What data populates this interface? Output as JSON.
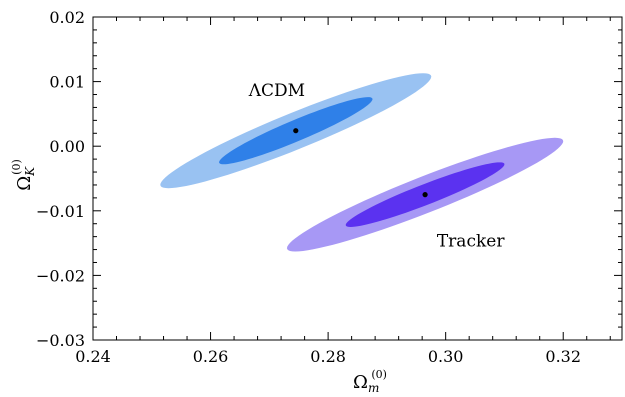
{
  "chart_data": {
    "type": "scatter",
    "title": "",
    "xlabel": {
      "main": "Ω",
      "sub": "m",
      "sup": "(0)"
    },
    "ylabel": {
      "main": "Ω",
      "sub": "K",
      "sup": "(0)"
    },
    "xlim": [
      0.24,
      0.33
    ],
    "ylim": [
      -0.03,
      0.02
    ],
    "xticks": [
      0.24,
      0.26,
      0.28,
      0.3,
      0.32
    ],
    "xtick_labels": [
      "0.24",
      "0.26",
      "0.28",
      "0.30",
      "0.32"
    ],
    "yticks": [
      -0.03,
      -0.02,
      -0.01,
      0.0,
      0.01,
      0.02
    ],
    "ytick_labels": [
      "−0.03",
      "−0.02",
      "−0.01",
      "0.00",
      "0.01",
      "0.02"
    ],
    "grid": false,
    "models": [
      {
        "label": "ΛCDM",
        "best_fit": {
          "x": 0.2745,
          "y": 0.0024
        },
        "contours": [
          {
            "level": "outer",
            "color": "#99c2f2",
            "center": [
              0.2745,
              0.0024
            ],
            "x_extent": [
              0.2514,
              0.2975
            ],
            "y_extent": [
              -0.0065,
              0.0113
            ]
          },
          {
            "level": "inner",
            "color": "#2f80e8",
            "center": [
              0.2745,
              0.0024
            ],
            "x_extent": [
              0.2614,
              0.2875
            ],
            "y_extent": [
              -0.0028,
              0.0076
            ]
          }
        ],
        "annotation_position": {
          "x": 0.2665,
          "y": 0.0078
        }
      },
      {
        "label": "Tracker",
        "best_fit": {
          "x": 0.2965,
          "y": -0.0075
        },
        "contours": [
          {
            "level": "outer",
            "color": "#a798f5",
            "center": [
              0.2965,
              -0.0075
            ],
            "x_extent": [
              0.2731,
              0.3201
            ],
            "y_extent": [
              -0.0163,
              0.0013
            ]
          },
          {
            "level": "inner",
            "color": "#5b32f0",
            "center": [
              0.2965,
              -0.0075
            ],
            "x_extent": [
              0.2831,
              0.3101
            ],
            "y_extent": [
              -0.0125,
              -0.0025
            ]
          }
        ],
        "annotation_position": {
          "x": 0.2985,
          "y": -0.0155
        }
      }
    ]
  }
}
